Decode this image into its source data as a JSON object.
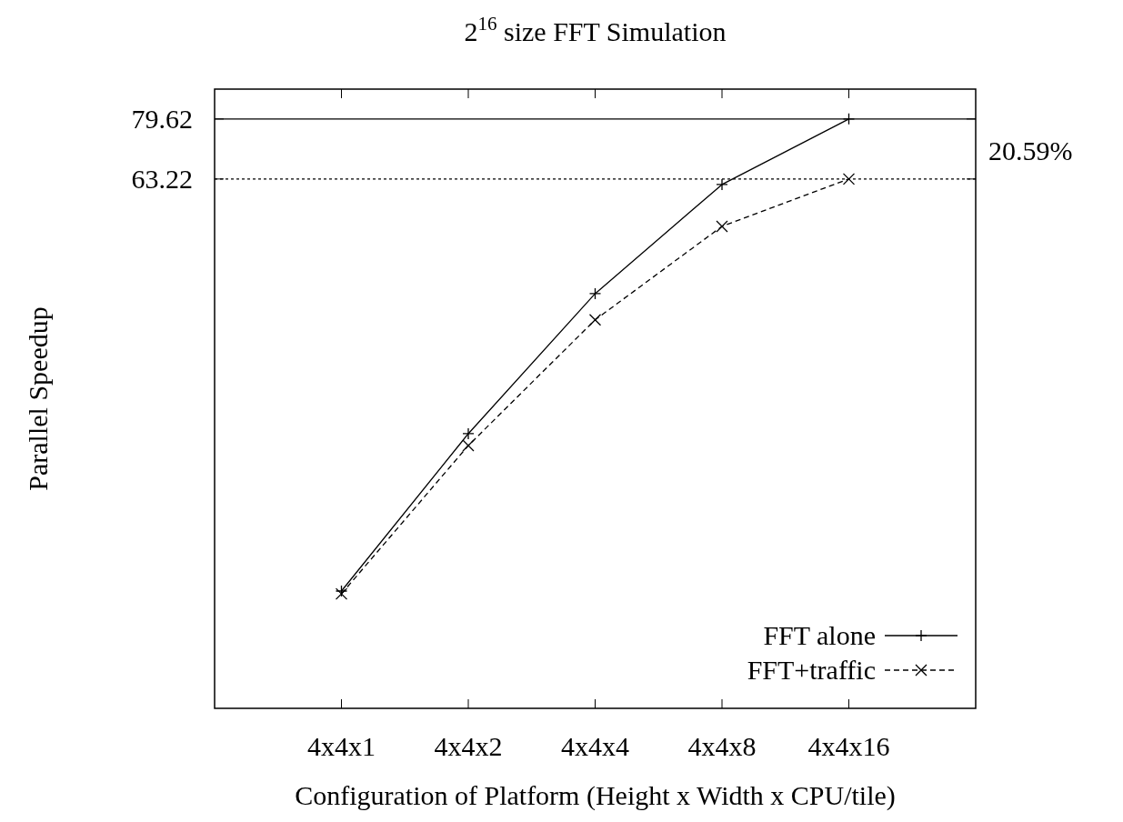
{
  "chart_data": {
    "type": "line",
    "title": "2$^{16}$ size FFT Simulation",
    "xlabel": "Configuration of Platform (Height x Width x CPU/tile)",
    "ylabel": "Parallel Speedup",
    "categories": [
      "4x4x1",
      "4x4x2",
      "4x4x4",
      "4x4x8",
      "4x4x16"
    ],
    "series": [
      {
        "name": "FFT alone",
        "color": "#000000",
        "line_style": "solid",
        "marker": "plus",
        "values": [
          12.98,
          23.76,
          40.7,
          61.9,
          79.62
        ]
      },
      {
        "name": "FFT+traffic",
        "color": "#000000",
        "line_style": "dashed",
        "marker": "cross",
        "values": [
          12.84,
          22.7,
          36.8,
          52.7,
          63.22
        ]
      }
    ],
    "log": "y",
    "ylim": [
      8.27,
      89.3
    ],
    "yticks": [
      63.22,
      79.62
    ],
    "ref_lines": [
      {
        "axis": "y",
        "value": 79.62,
        "line_style": "solid"
      },
      {
        "axis": "y",
        "value": 63.22,
        "line_style": "dotted"
      }
    ],
    "annotations": [
      "20.59%"
    ],
    "legend": "bottom right"
  }
}
